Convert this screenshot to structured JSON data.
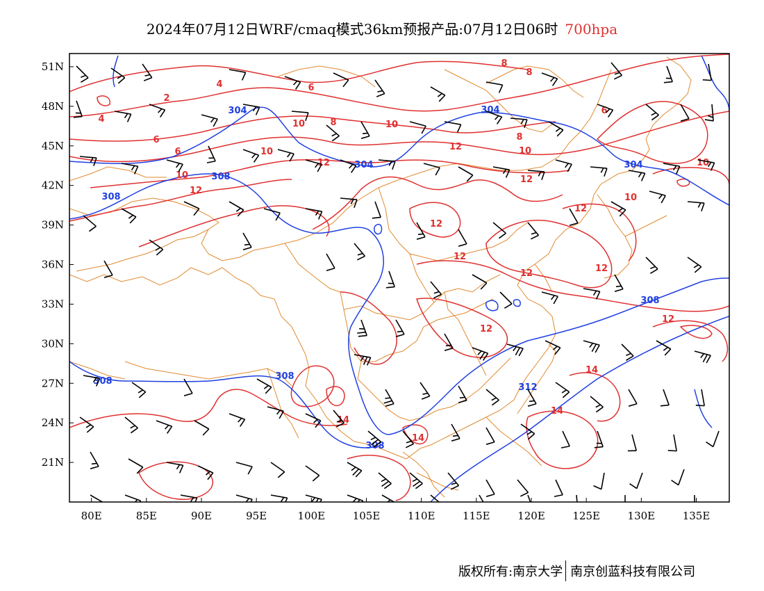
{
  "title": {
    "main": "2024年07月12日WRF/cmaq模式36km预报产品:07月12日06时",
    "level": "700hpa"
  },
  "map": {
    "lon_range": [
      78,
      138
    ],
    "lat_range": [
      18,
      52
    ],
    "x_ticks": [
      "80E",
      "85E",
      "90E",
      "95E",
      "100E",
      "105E",
      "110E",
      "115E",
      "120E",
      "125E",
      "130E",
      "135E"
    ],
    "y_ticks": [
      "51N",
      "48N",
      "45N",
      "42N",
      "39N",
      "36N",
      "33N",
      "30N",
      "27N",
      "24N",
      "21N"
    ],
    "colors": {
      "border": "#e08a30",
      "wind_speed_contour": "#e03030",
      "geopotential_contour": "#2040e0",
      "wind_barb": "#000000",
      "level_text": "#e03030"
    },
    "geopotential_labels": [
      "304",
      "304",
      "304",
      "304",
      "308",
      "308",
      "308",
      "308",
      "308",
      "308",
      "312"
    ],
    "wind_speed_labels": [
      "2",
      "4",
      "4",
      "6",
      "6",
      "6",
      "6",
      "8",
      "8",
      "8",
      "8",
      "10",
      "10",
      "10",
      "10",
      "10",
      "10",
      "10",
      "12",
      "12",
      "12",
      "12",
      "12",
      "12",
      "12",
      "12",
      "12",
      "12",
      "12",
      "14",
      "14",
      "14",
      "14"
    ]
  },
  "footer": {
    "copyright": "版权所有:南京大学",
    "company": "南京创蓝科技有限公司"
  }
}
